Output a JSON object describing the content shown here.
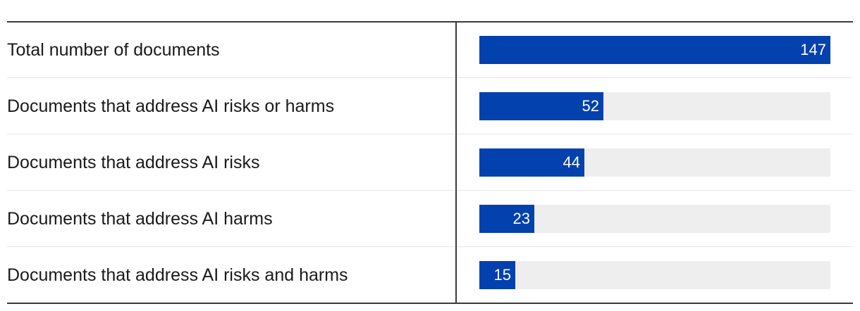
{
  "colors": {
    "bar": "#0241ae",
    "track": "#eeeeee",
    "rule": "#3a3a3a",
    "row_separator": "#e6e6e6",
    "label_text": "#1a1a1a",
    "value_text": "#ffffff"
  },
  "chart_data": {
    "type": "bar",
    "orientation": "horizontal",
    "categories": [
      "Total number of documents",
      "Documents that address AI risks or harms",
      "Documents that address AI risks",
      "Documents that address AI harms",
      "Documents that address AI risks and harms"
    ],
    "values": [
      147,
      52,
      44,
      23,
      15
    ],
    "data_labels": [
      "147",
      "52",
      "44",
      "23",
      "15"
    ],
    "xlim": [
      0,
      147
    ],
    "grid": false,
    "legend": "none"
  }
}
